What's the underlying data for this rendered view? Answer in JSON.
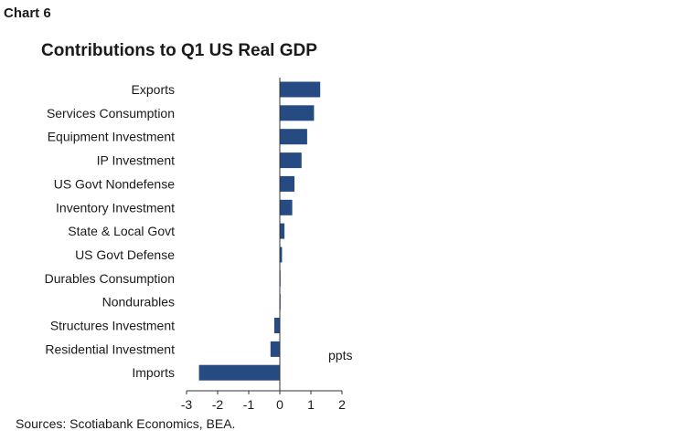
{
  "header": {
    "chart_label": "Chart 6"
  },
  "footer": {
    "sources": "Sources: Scotiabank Economics, BEA."
  },
  "chart_data": {
    "type": "bar",
    "orientation": "horizontal",
    "title": "Contributions to Q1 US Real GDP",
    "unit_label": "ppts",
    "bar_color": "#264b83",
    "categories": [
      "Exports",
      "Services Consumption",
      "Equipment Investment",
      "IP Investment",
      "US Govt Nondefense",
      "Inventory Investment",
      "State & Local Govt",
      "US Govt Defense",
      "Durables Consumption",
      "Nondurables",
      "Structures Investment",
      "Residential Investment",
      "Imports"
    ],
    "values": [
      1.3,
      1.1,
      0.88,
      0.7,
      0.47,
      0.4,
      0.15,
      0.07,
      0.02,
      0.01,
      -0.18,
      -0.3,
      -2.6
    ],
    "xlim": [
      -3,
      2
    ],
    "xticks": [
      "-3",
      "-2",
      "-1",
      "0",
      "1",
      "2"
    ],
    "grid": false,
    "legend": "none"
  }
}
